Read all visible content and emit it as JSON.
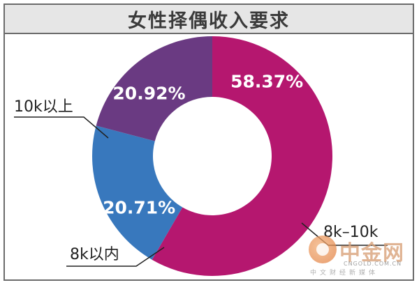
{
  "chart_data": {
    "type": "pie",
    "title": "女性择偶收入要求",
    "slices": [
      {
        "label": "8k–10k",
        "value": 58.37,
        "value_label": "58.37%",
        "color": "#b5176f"
      },
      {
        "label": "8k以内",
        "value": 20.71,
        "value_label": "20.71%",
        "color": "#3878bd"
      },
      {
        "label": "10k以上",
        "value": 20.92,
        "value_label": "20.92%",
        "color": "#6a3a82"
      }
    ]
  },
  "watermark": {
    "brand": "中金网",
    "domain": "CNGOLD.COM.CN",
    "tagline": "中文财经新媒体"
  }
}
